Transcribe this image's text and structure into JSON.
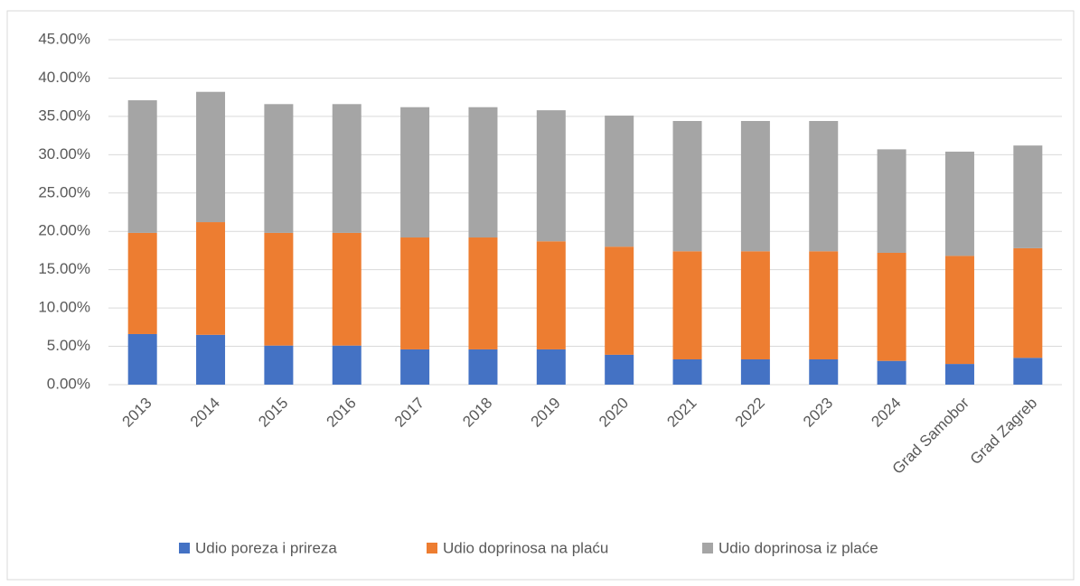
{
  "chart_data": {
    "type": "stacked_bar",
    "categories": [
      "2013",
      "2014",
      "2015",
      "2016",
      "2017",
      "2018",
      "2019",
      "2020",
      "2021",
      "2022",
      "2023",
      "2024",
      "Grad Samobor",
      "Grad Zagreb"
    ],
    "series": [
      {
        "name": "Udio poreza i prireza",
        "color": "#4472c4",
        "values": [
          6.6,
          6.5,
          5.1,
          5.1,
          4.6,
          4.6,
          4.6,
          3.9,
          3.3,
          3.3,
          3.3,
          3.1,
          2.7,
          3.5
        ]
      },
      {
        "name": "Udio doprinosa na plaću",
        "color": "#ed7d31",
        "values": [
          13.2,
          14.7,
          14.7,
          14.7,
          14.6,
          14.6,
          14.1,
          14.1,
          14.1,
          14.1,
          14.1,
          14.1,
          14.1,
          14.3
        ]
      },
      {
        "name": "Udio doprinosa iz plaće",
        "color": "#a5a5a5",
        "values": [
          17.3,
          17.0,
          16.8,
          16.8,
          17.0,
          17.0,
          17.1,
          17.1,
          17.0,
          17.0,
          17.0,
          13.5,
          13.6,
          13.4
        ]
      }
    ],
    "ylim": [
      0,
      45
    ],
    "yticks": [
      {
        "value": 0,
        "label": "0.00%"
      },
      {
        "value": 5,
        "label": "5.00%"
      },
      {
        "value": 10,
        "label": "10.00%"
      },
      {
        "value": 15,
        "label": "15.00%"
      },
      {
        "value": 20,
        "label": "20.00%"
      },
      {
        "value": 25,
        "label": "25.00%"
      },
      {
        "value": 30,
        "label": "30.00%"
      },
      {
        "value": 35,
        "label": "35.00%"
      },
      {
        "value": 40,
        "label": "40.00%"
      },
      {
        "value": 45,
        "label": "45.00%"
      }
    ],
    "grid": true,
    "legend": "bottom"
  }
}
